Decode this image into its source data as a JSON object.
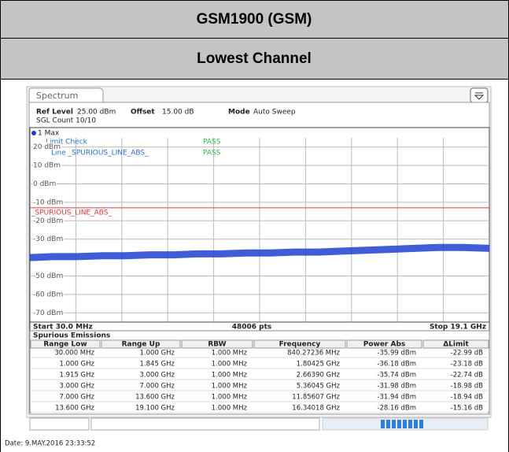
{
  "header": {
    "title": "GSM1900 (GSM)",
    "subtitle": "Lowest Channel"
  },
  "screen": {
    "tab": "Spectrum",
    "ref_level_label": "Ref Level",
    "ref_level": "25.00 dBm",
    "offset_label": "Offset",
    "offset": "15.00 dB",
    "mode_label": "Mode",
    "mode": "Auto Sweep",
    "count": "SGL Count 10/10",
    "limit_check": "Limit Check",
    "limit_check_result": "PASS",
    "line_check": "Line _SPURIOUS_LINE_ABS_",
    "line_check_result": "PASS",
    "points": "48006 pts",
    "table": {
      "title": "Spurious Emissions",
      "headers": [
        "Range Low",
        "Range Up",
        "RBW",
        "Frequency",
        "Power Abs",
        "ΔLimit"
      ],
      "rows": [
        [
          "30.000 MHz",
          "1.000 GHz",
          "1.000 MHz",
          "840.27236 MHz",
          "-35.99 dBm",
          "-22.99 dB"
        ],
        [
          "1.000 GHz",
          "1.845 GHz",
          "1.000 MHz",
          "1.80425 GHz",
          "-36.18 dBm",
          "-23.18 dB"
        ],
        [
          "1.915 GHz",
          "3.000 GHz",
          "1.000 MHz",
          "2.66390 GHz",
          "-35.74 dBm",
          "-22.74 dB"
        ],
        [
          "3.000 GHz",
          "7.000 GHz",
          "1.000 MHz",
          "5.36045 GHz",
          "-31.98 dBm",
          "-18.98 dB"
        ],
        [
          "7.000 GHz",
          "13.600 GHz",
          "1.000 MHz",
          "11.85607 GHz",
          "-31.94 dBm",
          "-18.94 dB"
        ],
        [
          "13.600 GHz",
          "19.100 GHz",
          "1.000 MHz",
          "16.34018 GHz",
          "-28.16 dBm",
          "-15.16 dB"
        ]
      ]
    },
    "date": "Date: 9.MAY.2016  23:33:52"
  },
  "chart_data": {
    "type": "line",
    "ylim": [
      -75,
      25
    ],
    "yticks": [
      {
        "value": 20,
        "label": "20 dBm"
      },
      {
        "value": 10,
        "label": "10 dBm"
      },
      {
        "value": 0,
        "label": "0 dBm"
      },
      {
        "value": -10,
        "label": "-10 dBm"
      },
      {
        "value": -20,
        "label": "-20 dBm"
      },
      {
        "value": -30,
        "label": "-30 dBm"
      },
      {
        "value": -50,
        "label": "-50 dBm"
      },
      {
        "value": -60,
        "label": "-60 dBm"
      },
      {
        "value": -70,
        "label": "-70 dBm"
      }
    ],
    "xlim": [
      30,
      19100
    ],
    "xticks": [
      {
        "value": 30,
        "label": "Start 30.0 MHz"
      },
      {
        "value": 19100,
        "label": "Stop 19.1 GHz"
      }
    ],
    "grid": true,
    "limit_line": {
      "label": "_SPURIOUS_LINE_ABS_",
      "value": -13,
      "color": "#d04040"
    },
    "series": [
      {
        "name": "1 Max",
        "color": "#1f3fd0",
        "x": [
          30,
          1000,
          2000,
          3000,
          4000,
          5000,
          6000,
          7000,
          8000,
          9000,
          10000,
          11000,
          12000,
          13000,
          14000,
          15000,
          16000,
          17000,
          18000,
          19100
        ],
        "values": [
          -40,
          -39.5,
          -39.5,
          -39,
          -39,
          -38.5,
          -38.5,
          -38,
          -38,
          -37.5,
          -37.5,
          -37,
          -37,
          -36.5,
          -36,
          -35.5,
          -35,
          -34.5,
          -34.5,
          -35
        ]
      }
    ]
  }
}
